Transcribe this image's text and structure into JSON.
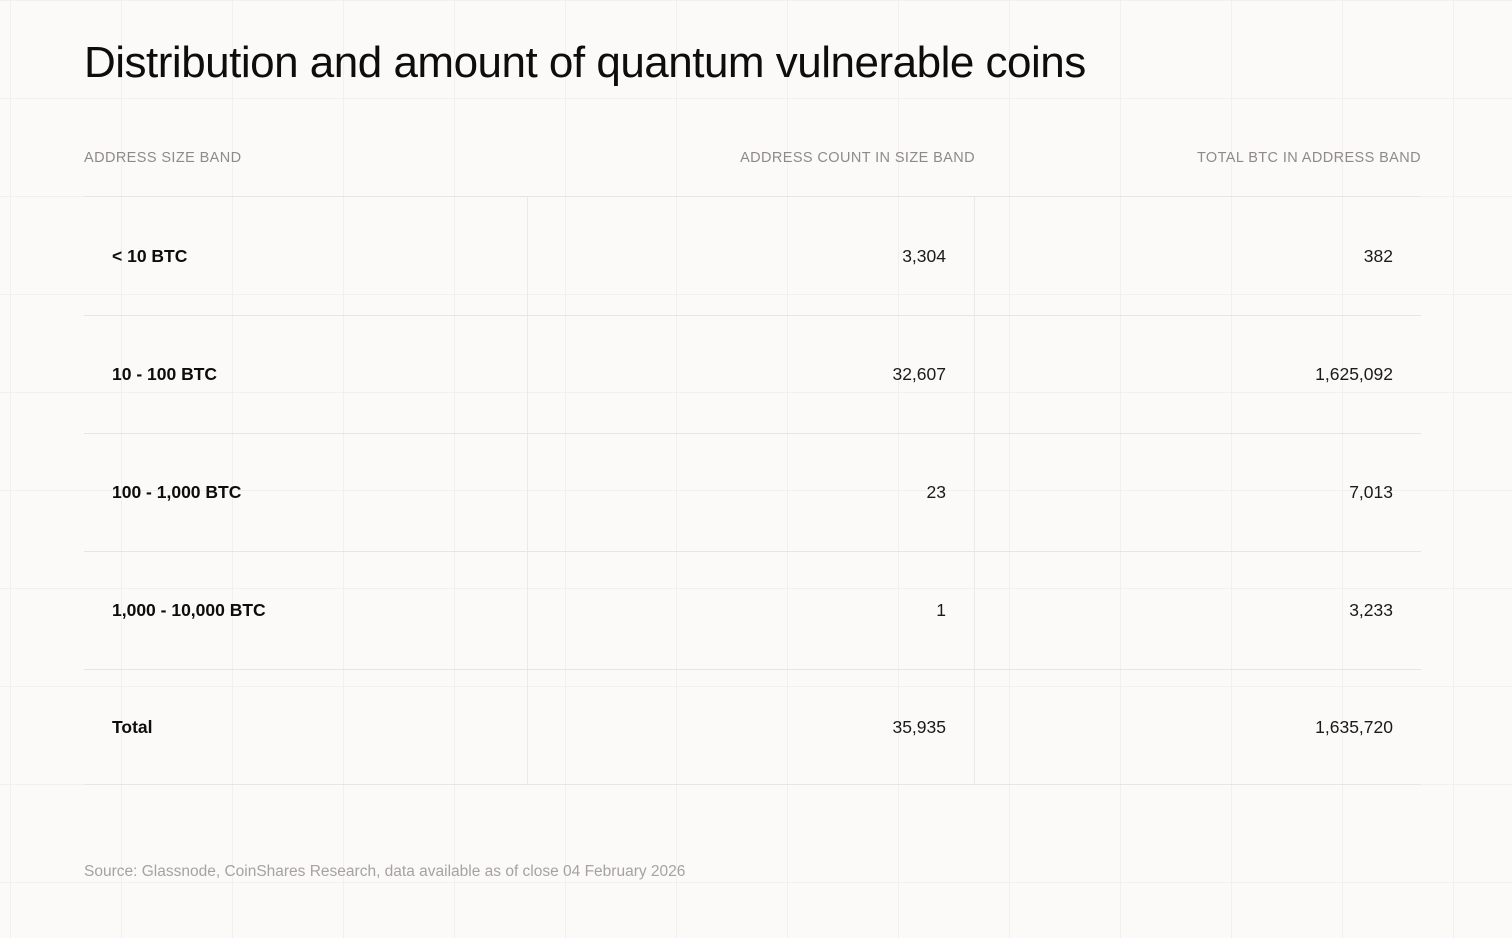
{
  "page": {
    "title": "Distribution and amount of quantum vulnerable coins",
    "source": "Source: Glassnode, CoinShares Research, data available as of close 04 February 2026"
  },
  "chart_data": {
    "type": "table",
    "title": "Distribution and amount of quantum vulnerable coins",
    "columns": [
      "ADDRESS SIZE BAND",
      "ADDRESS COUNT IN SIZE BAND",
      "TOTAL BTC IN ADDRESS BAND"
    ],
    "rows": [
      {
        "band": "< 10 BTC",
        "address_count": "3,304",
        "total_btc": "382"
      },
      {
        "band": "10 - 100 BTC",
        "address_count": "32,607",
        "total_btc": "1,625,092"
      },
      {
        "band": "100 - 1,000 BTC",
        "address_count": "23",
        "total_btc": "7,013"
      },
      {
        "band": "1,000 - 10,000 BTC",
        "address_count": "1",
        "total_btc": "3,233"
      },
      {
        "band": "Total",
        "address_count": "35,935",
        "total_btc": "1,635,720"
      }
    ],
    "source": "Source: Glassnode, CoinShares Research, data available as of close 04 February 2026"
  }
}
